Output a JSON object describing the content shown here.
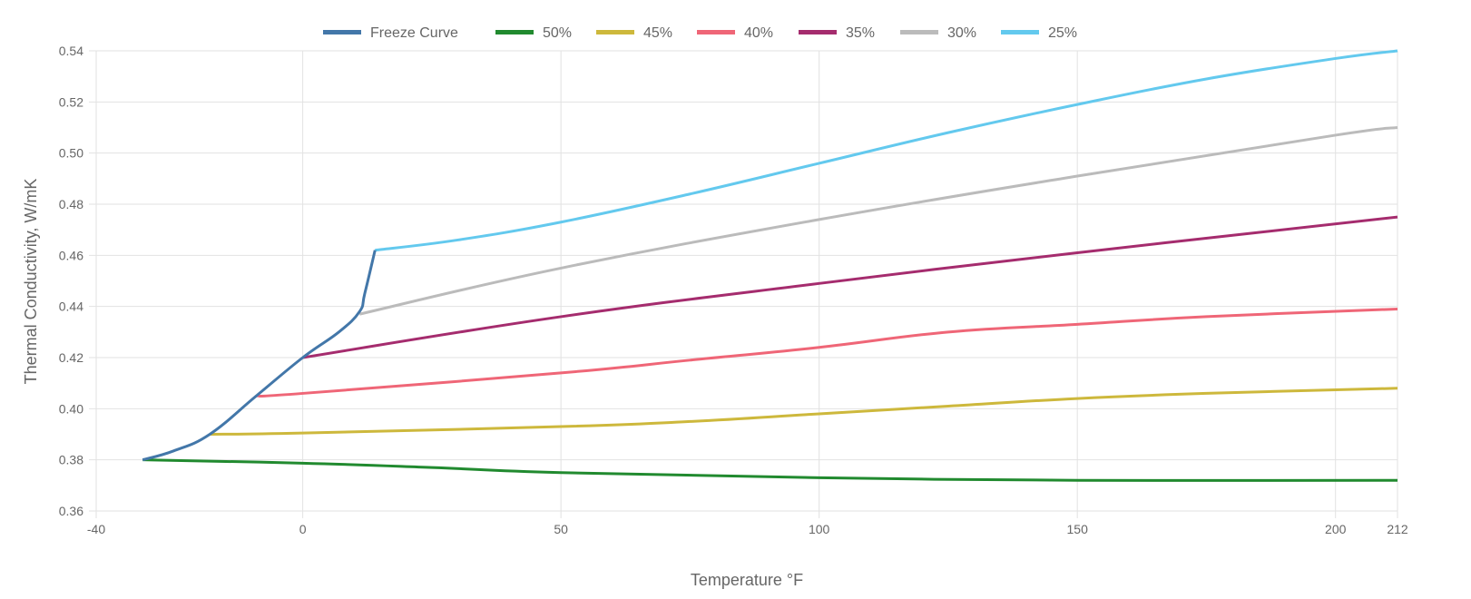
{
  "chart_data": {
    "type": "line",
    "title": "",
    "xlabel": "Temperature °F",
    "ylabel": "Thermal Conductivity, W/mK",
    "xlim": [
      -40,
      212
    ],
    "ylim": [
      0.36,
      0.54
    ],
    "xticks": [
      "-40",
      "0",
      "50",
      "100",
      "150",
      "200",
      "212"
    ],
    "xtick_values": [
      -40,
      0,
      50,
      100,
      150,
      200,
      212
    ],
    "yticks": [
      "0.36",
      "0.38",
      "0.40",
      "0.42",
      "0.44",
      "0.46",
      "0.48",
      "0.50",
      "0.52",
      "0.54"
    ],
    "ytick_values": [
      0.36,
      0.38,
      0.4,
      0.42,
      0.44,
      0.46,
      0.48,
      0.5,
      0.52,
      0.54
    ],
    "grid": true,
    "legend_position": "top",
    "series": [
      {
        "name": "Freeze Curve",
        "color": "#4377a9",
        "x": [
          -31,
          -25,
          -18,
          -9,
          0,
          7,
          11,
          12,
          14
        ],
        "y": [
          0.38,
          0.3835,
          0.39,
          0.405,
          0.42,
          0.43,
          0.438,
          0.445,
          0.462
        ]
      },
      {
        "name": "50%",
        "color": "#218a2f",
        "x": [
          -31,
          0,
          25,
          50,
          100,
          150,
          212
        ],
        "y": [
          0.38,
          0.3787,
          0.377,
          0.375,
          0.373,
          0.372,
          0.372
        ]
      },
      {
        "name": "45%",
        "color": "#cdb83c",
        "x": [
          -18,
          0,
          50,
          75,
          100,
          125,
          150,
          175,
          212
        ],
        "y": [
          0.39,
          0.3905,
          0.393,
          0.395,
          0.398,
          0.401,
          0.404,
          0.406,
          0.408
        ]
      },
      {
        "name": "40%",
        "color": "#ef6677",
        "x": [
          -9,
          0,
          50,
          75,
          100,
          125,
          150,
          175,
          212
        ],
        "y": [
          0.405,
          0.406,
          0.414,
          0.419,
          0.424,
          0.43,
          0.433,
          0.436,
          0.439
        ]
      },
      {
        "name": "35%",
        "color": "#a52c6e",
        "x": [
          0,
          50,
          100,
          150,
          212
        ],
        "y": [
          0.42,
          0.436,
          0.449,
          0.461,
          0.475
        ]
      },
      {
        "name": "30%",
        "color": "#bbbbbb",
        "x": [
          11,
          50,
          100,
          150,
          200,
          212
        ],
        "y": [
          0.437,
          0.455,
          0.474,
          0.491,
          0.507,
          0.51
        ]
      },
      {
        "name": "25%",
        "color": "#63c9ee",
        "x": [
          14,
          30,
          50,
          75,
          100,
          125,
          150,
          175,
          200,
          212
        ],
        "y": [
          0.462,
          0.466,
          0.473,
          0.484,
          0.496,
          0.508,
          0.519,
          0.529,
          0.537,
          0.54
        ]
      }
    ]
  }
}
